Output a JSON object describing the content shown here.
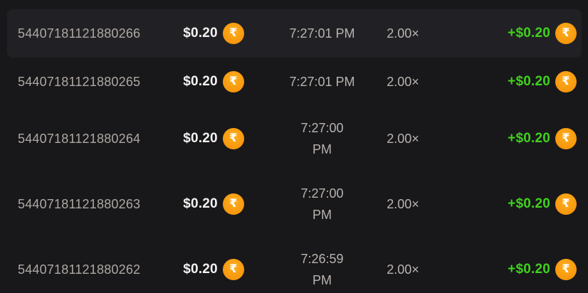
{
  "theme": {
    "colors": {
      "page_bg": "#18181b",
      "row_highlight": "#212125",
      "id_text": "#afa8a1",
      "muted_text": "#b9b3ae",
      "amount_text": "#f4f2f0",
      "win_text": "#40d11c",
      "coin_orange": "#f8970d",
      "coin_symbol_color": "#ffffff"
    },
    "coin_symbol": "₹"
  },
  "table": {
    "description": "bet-history-list",
    "rows": [
      {
        "bet_id": "54407181121880266",
        "bet_amount": "$0.20",
        "time": "7:27:01 PM",
        "multiplier": "2.00×",
        "payout": "+$0.20",
        "highlighted": true
      },
      {
        "bet_id": "54407181121880265",
        "bet_amount": "$0.20",
        "time": "7:27:01 PM",
        "multiplier": "2.00×",
        "payout": "+$0.20",
        "highlighted": false
      },
      {
        "bet_id": "54407181121880264",
        "bet_amount": "$0.20",
        "time": "7:27:00\nPM",
        "multiplier": "2.00×",
        "payout": "+$0.20",
        "highlighted": false
      },
      {
        "bet_id": "54407181121880263",
        "bet_amount": "$0.20",
        "time": "7:27:00\nPM",
        "multiplier": "2.00×",
        "payout": "+$0.20",
        "highlighted": false
      },
      {
        "bet_id": "54407181121880262",
        "bet_amount": "$0.20",
        "time": "7:26:59\nPM",
        "multiplier": "2.00×",
        "payout": "+$0.20",
        "highlighted": false
      }
    ]
  }
}
